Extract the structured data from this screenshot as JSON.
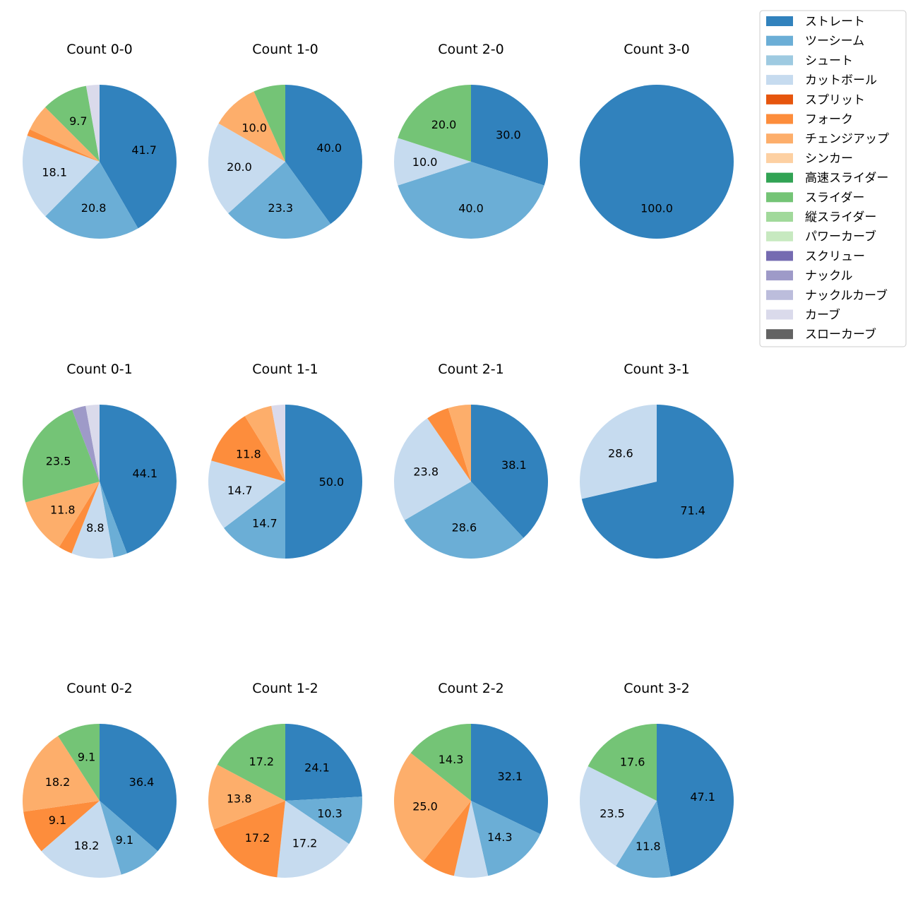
{
  "legend": {
    "placement": "top-right",
    "entries": [
      {
        "name": "ストレート",
        "color": "#3182bd"
      },
      {
        "name": "ツーシーム",
        "color": "#6baed6"
      },
      {
        "name": "シュート",
        "color": "#9ecae1"
      },
      {
        "name": "カットボール",
        "color": "#c6dbef"
      },
      {
        "name": "スプリット",
        "color": "#e6550d"
      },
      {
        "name": "フォーク",
        "color": "#fd8d3c"
      },
      {
        "name": "チェンジアップ",
        "color": "#fdae6b"
      },
      {
        "name": "シンカー",
        "color": "#fdd0a2"
      },
      {
        "name": "高速スライダー",
        "color": "#31a354"
      },
      {
        "name": "スライダー",
        "color": "#74c476"
      },
      {
        "name": "縦スライダー",
        "color": "#a1d99b"
      },
      {
        "name": "パワーカーブ",
        "color": "#c7e9c0"
      },
      {
        "name": "スクリュー",
        "color": "#756bb1"
      },
      {
        "name": "ナックル",
        "color": "#9e9ac8"
      },
      {
        "name": "ナックルカーブ",
        "color": "#bcbddc"
      },
      {
        "name": "カーブ",
        "color": "#dadaeb"
      },
      {
        "name": "スローカーブ",
        "color": "#636363"
      }
    ]
  },
  "chart_data": [
    {
      "type": "pie",
      "title": "Count 0-0",
      "slices": [
        {
          "category": "ストレート",
          "value": 41.7,
          "label": "41.7"
        },
        {
          "category": "ツーシーム",
          "value": 20.8,
          "label": "20.8"
        },
        {
          "category": "カットボール",
          "value": 18.1,
          "label": "18.1"
        },
        {
          "category": "フォーク",
          "value": 1.4,
          "label": ""
        },
        {
          "category": "チェンジアップ",
          "value": 5.6,
          "label": ""
        },
        {
          "category": "スライダー",
          "value": 9.7,
          "label": "9.7"
        },
        {
          "category": "カーブ",
          "value": 2.8,
          "label": ""
        }
      ]
    },
    {
      "type": "pie",
      "title": "Count 1-0",
      "slices": [
        {
          "category": "ストレート",
          "value": 40.0,
          "label": "40.0"
        },
        {
          "category": "ツーシーム",
          "value": 23.3,
          "label": "23.3"
        },
        {
          "category": "カットボール",
          "value": 20.0,
          "label": "20.0"
        },
        {
          "category": "チェンジアップ",
          "value": 10.0,
          "label": "10.0"
        },
        {
          "category": "スライダー",
          "value": 6.7,
          "label": ""
        }
      ]
    },
    {
      "type": "pie",
      "title": "Count 2-0",
      "slices": [
        {
          "category": "ストレート",
          "value": 30.0,
          "label": "30.0"
        },
        {
          "category": "ツーシーム",
          "value": 40.0,
          "label": "40.0"
        },
        {
          "category": "カットボール",
          "value": 10.0,
          "label": "10.0"
        },
        {
          "category": "スライダー",
          "value": 20.0,
          "label": "20.0"
        }
      ]
    },
    {
      "type": "pie",
      "title": "Count 3-0",
      "slices": [
        {
          "category": "ストレート",
          "value": 100.0,
          "label": "100.0"
        }
      ]
    },
    {
      "type": "pie",
      "title": "Count 0-1",
      "slices": [
        {
          "category": "ストレート",
          "value": 44.1,
          "label": "44.1"
        },
        {
          "category": "ツーシーム",
          "value": 2.9,
          "label": ""
        },
        {
          "category": "カットボール",
          "value": 8.8,
          "label": "8.8"
        },
        {
          "category": "フォーク",
          "value": 2.9,
          "label": ""
        },
        {
          "category": "チェンジアップ",
          "value": 11.8,
          "label": "11.8"
        },
        {
          "category": "スライダー",
          "value": 23.5,
          "label": "23.5"
        },
        {
          "category": "ナックル",
          "value": 2.9,
          "label": ""
        },
        {
          "category": "カーブ",
          "value": 2.9,
          "label": ""
        }
      ]
    },
    {
      "type": "pie",
      "title": "Count 1-1",
      "slices": [
        {
          "category": "ストレート",
          "value": 50.0,
          "label": "50.0"
        },
        {
          "category": "ツーシーム",
          "value": 14.7,
          "label": "14.7"
        },
        {
          "category": "カットボール",
          "value": 14.7,
          "label": "14.7"
        },
        {
          "category": "フォーク",
          "value": 11.8,
          "label": "11.8"
        },
        {
          "category": "チェンジアップ",
          "value": 5.9,
          "label": ""
        },
        {
          "category": "カーブ",
          "value": 2.9,
          "label": ""
        }
      ]
    },
    {
      "type": "pie",
      "title": "Count 2-1",
      "slices": [
        {
          "category": "ストレート",
          "value": 38.1,
          "label": "38.1"
        },
        {
          "category": "ツーシーム",
          "value": 28.6,
          "label": "28.6"
        },
        {
          "category": "カットボール",
          "value": 23.8,
          "label": "23.8"
        },
        {
          "category": "フォーク",
          "value": 4.8,
          "label": ""
        },
        {
          "category": "チェンジアップ",
          "value": 4.8,
          "label": ""
        }
      ]
    },
    {
      "type": "pie",
      "title": "Count 3-1",
      "slices": [
        {
          "category": "ストレート",
          "value": 71.4,
          "label": "71.4"
        },
        {
          "category": "カットボール",
          "value": 28.6,
          "label": "28.6"
        }
      ]
    },
    {
      "type": "pie",
      "title": "Count 0-2",
      "slices": [
        {
          "category": "ストレート",
          "value": 36.4,
          "label": "36.4"
        },
        {
          "category": "ツーシーム",
          "value": 9.1,
          "label": "9.1"
        },
        {
          "category": "カットボール",
          "value": 18.2,
          "label": "18.2"
        },
        {
          "category": "フォーク",
          "value": 9.1,
          "label": "9.1"
        },
        {
          "category": "チェンジアップ",
          "value": 18.2,
          "label": "18.2"
        },
        {
          "category": "スライダー",
          "value": 9.1,
          "label": "9.1"
        }
      ]
    },
    {
      "type": "pie",
      "title": "Count 1-2",
      "slices": [
        {
          "category": "ストレート",
          "value": 24.1,
          "label": "24.1"
        },
        {
          "category": "ツーシーム",
          "value": 10.3,
          "label": "10.3"
        },
        {
          "category": "カットボール",
          "value": 17.2,
          "label": "17.2"
        },
        {
          "category": "フォーク",
          "value": 17.2,
          "label": "17.2"
        },
        {
          "category": "チェンジアップ",
          "value": 13.8,
          "label": "13.8"
        },
        {
          "category": "スライダー",
          "value": 17.2,
          "label": "17.2"
        }
      ]
    },
    {
      "type": "pie",
      "title": "Count 2-2",
      "slices": [
        {
          "category": "ストレート",
          "value": 32.1,
          "label": "32.1"
        },
        {
          "category": "ツーシーム",
          "value": 14.3,
          "label": "14.3"
        },
        {
          "category": "カットボール",
          "value": 7.1,
          "label": ""
        },
        {
          "category": "フォーク",
          "value": 7.1,
          "label": ""
        },
        {
          "category": "チェンジアップ",
          "value": 25.0,
          "label": "25.0"
        },
        {
          "category": "スライダー",
          "value": 14.3,
          "label": "14.3"
        }
      ]
    },
    {
      "type": "pie",
      "title": "Count 3-2",
      "slices": [
        {
          "category": "ストレート",
          "value": 47.1,
          "label": "47.1"
        },
        {
          "category": "ツーシーム",
          "value": 11.8,
          "label": "11.8"
        },
        {
          "category": "カットボール",
          "value": 23.5,
          "label": "23.5"
        },
        {
          "category": "スライダー",
          "value": 17.6,
          "label": "17.6"
        }
      ]
    }
  ]
}
